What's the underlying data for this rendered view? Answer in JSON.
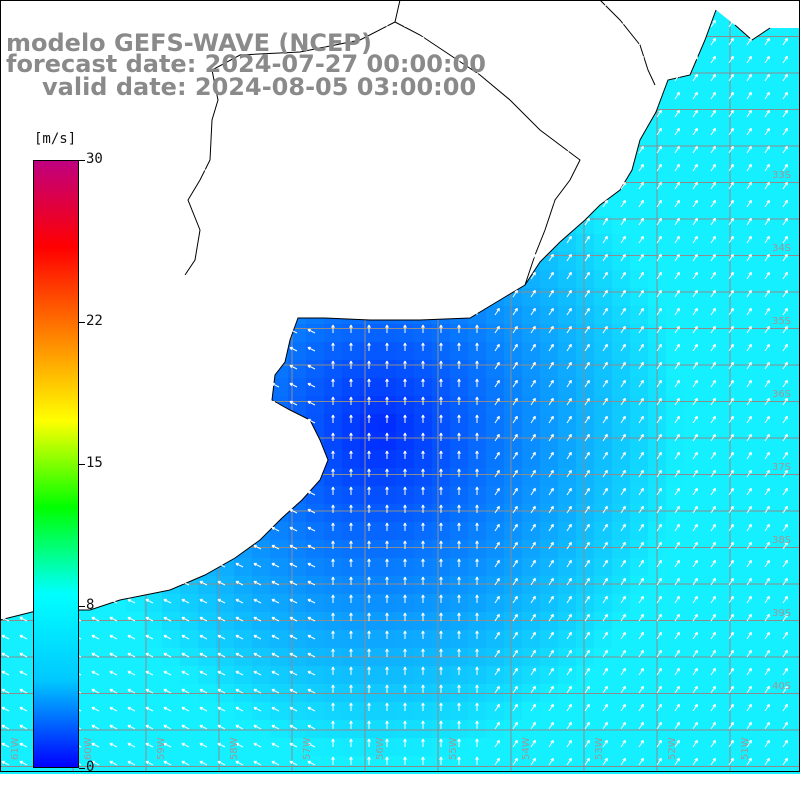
{
  "title": {
    "line1": "modelo GEFS-WAVE (NCEP)",
    "line2": "forecast date: 2024-07-27 00:00:00",
    "line3": "valid date: 2024-08-05 03:00:00"
  },
  "colorbar": {
    "unit": "[m/s]",
    "ticks": [
      "30",
      "22",
      "15",
      "8",
      "0"
    ],
    "tick_values": [
      30,
      22,
      15,
      8,
      0
    ],
    "min": 0,
    "max": 30,
    "colors": [
      "#0000ff",
      "#00c8ff",
      "#00ffff",
      "#00ff00",
      "#ffff00",
      "#ff8000",
      "#ff0000",
      "#c0007f"
    ]
  },
  "map": {
    "lat_labels": [
      "33S",
      "34S",
      "35S",
      "36S",
      "37S",
      "38S",
      "39S",
      "40S"
    ],
    "lon_labels": [
      "61W",
      "60W",
      "59W",
      "58W",
      "57W",
      "56W",
      "55W",
      "54W",
      "53W",
      "52W",
      "51W"
    ],
    "land_color": "#ffffff",
    "coast_color": "#000000",
    "grid_color": "#8c8c8c"
  }
}
